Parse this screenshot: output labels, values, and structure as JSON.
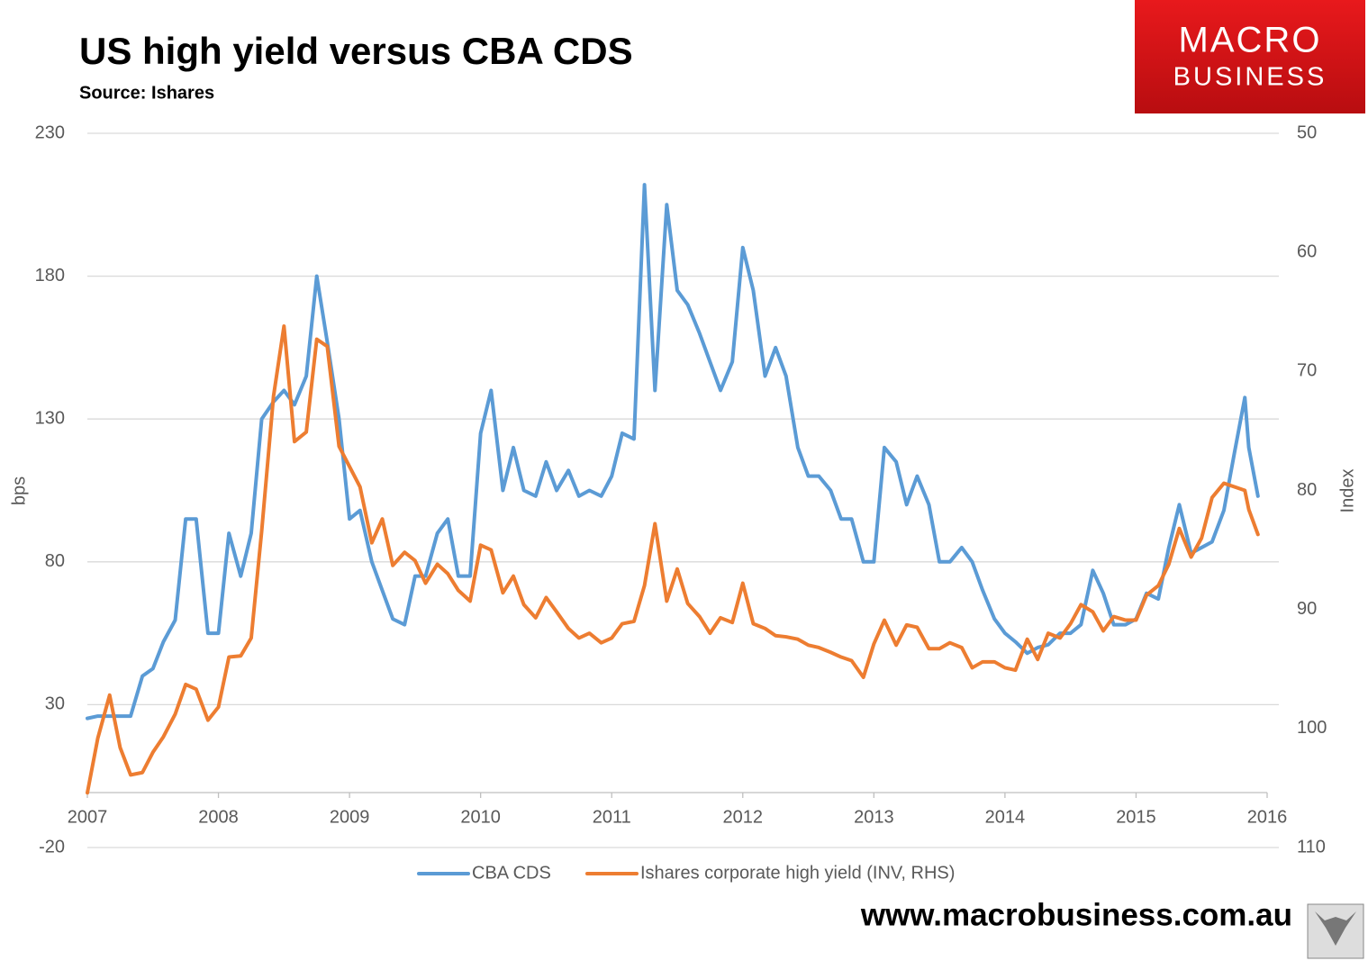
{
  "chart_data": {
    "type": "line",
    "title": "US high yield versus CBA CDS",
    "subtitle": "Source: Ishares",
    "y_label": "bps",
    "y2_label": "Index",
    "x": [
      2007,
      2007.08,
      2007.17,
      2007.25,
      2007.33,
      2007.42,
      2007.5,
      2007.58,
      2007.67,
      2007.75,
      2007.83,
      2007.92,
      2008,
      2008.08,
      2008.17,
      2008.25,
      2008.33,
      2008.42,
      2008.5,
      2008.58,
      2008.67,
      2008.75,
      2008.83,
      2008.92,
      2009,
      2009.08,
      2009.17,
      2009.25,
      2009.33,
      2009.42,
      2009.5,
      2009.58,
      2009.67,
      2009.75,
      2009.83,
      2009.92,
      2010,
      2010.08,
      2010.17,
      2010.25,
      2010.33,
      2010.42,
      2010.5,
      2010.58,
      2010.67,
      2010.75,
      2010.83,
      2010.92,
      2011,
      2011.08,
      2011.17,
      2011.25,
      2011.33,
      2011.42,
      2011.5,
      2011.58,
      2011.67,
      2011.75,
      2011.83,
      2011.92,
      2012,
      2012.08,
      2012.17,
      2012.25,
      2012.33,
      2012.42,
      2012.5,
      2012.58,
      2012.67,
      2012.75,
      2012.83,
      2012.92,
      2013,
      2013.08,
      2013.17,
      2013.25,
      2013.33,
      2013.42,
      2013.5,
      2013.58,
      2013.67,
      2013.75,
      2013.83,
      2013.92,
      2014,
      2014.08,
      2014.17,
      2014.25,
      2014.33,
      2014.42,
      2014.5,
      2014.58,
      2014.67,
      2014.75,
      2014.83,
      2014.92,
      2015,
      2015.08,
      2015.17,
      2015.25,
      2015.33,
      2015.42,
      2015.5,
      2015.58,
      2015.67,
      2015.75,
      2015.83,
      2015.86,
      2015.93
    ],
    "series": [
      {
        "name": "CBA CDS",
        "color": "#5b9bd5",
        "values": [
          25.2,
          26,
          26,
          26,
          26,
          40,
          42.6,
          52,
          59.6,
          95,
          95,
          55,
          55,
          90,
          75,
          90,
          130,
          136,
          140,
          135,
          145,
          180,
          157,
          130,
          95,
          98,
          80,
          70,
          60,
          58,
          75,
          75,
          90,
          95,
          75,
          75,
          125,
          140,
          105,
          120,
          105,
          103,
          115,
          105,
          112,
          103,
          105,
          103,
          110,
          125,
          123,
          212,
          140,
          205,
          175,
          170,
          160,
          150,
          140,
          150,
          190,
          175,
          145,
          155,
          145,
          120,
          110,
          110,
          105,
          95,
          95,
          80,
          80,
          120,
          115,
          100,
          110,
          100,
          80,
          80,
          85,
          80,
          70,
          60,
          55,
          52,
          48,
          50,
          51,
          55,
          55,
          58,
          77,
          69,
          58,
          58,
          60,
          69,
          67,
          85,
          100,
          83,
          85,
          87,
          98,
          118,
          137.5,
          120,
          103
        ]
      },
      {
        "name": "Ishares corporate high yield (INV, RHS)",
        "color": "#ed7d31",
        "axis": "y2",
        "values": [
          105.4,
          100.8,
          97.2,
          101.6,
          103.9,
          103.7,
          102,
          100.7,
          98.8,
          96.3,
          96.7,
          99.3,
          98.2,
          94,
          93.9,
          92.4,
          83.4,
          72.1,
          66.2,
          75.9,
          75.1,
          67.3,
          67.9,
          76.3,
          78,
          79.7,
          84.4,
          82.4,
          86.3,
          85.2,
          85.9,
          87.8,
          86.2,
          87,
          88.4,
          89.3,
          84.6,
          85,
          88.6,
          87.2,
          89.6,
          90.7,
          89,
          90.2,
          91.6,
          92.4,
          92,
          92.8,
          92.4,
          91.2,
          91,
          88,
          82.8,
          89.3,
          86.6,
          89.5,
          90.6,
          92,
          90.7,
          91.1,
          87.8,
          91.2,
          91.6,
          92.2,
          92.3,
          92.5,
          93,
          93.2,
          93.6,
          94,
          94.3,
          95.7,
          92.9,
          90.9,
          93,
          91.3,
          91.5,
          93.3,
          93.3,
          92.8,
          93.2,
          94.9,
          94.4,
          94.4,
          94.9,
          95.1,
          92.5,
          94.2,
          92,
          92.4,
          91.2,
          89.6,
          90.2,
          91.8,
          90.6,
          90.9,
          90.9,
          88.8,
          88,
          86.2,
          83.2,
          85.6,
          84,
          80.6,
          79.4,
          79.7,
          80,
          81.6,
          83.7
        ]
      }
    ],
    "xlim": [
      2007,
      2016
    ],
    "xticks": [
      2007,
      2008,
      2009,
      2010,
      2011,
      2012,
      2013,
      2014,
      2015,
      2016
    ],
    "ylim": [
      -20,
      230
    ],
    "yticks": [
      -20,
      30,
      80,
      130,
      180,
      230
    ],
    "y2lim": [
      50,
      110
    ],
    "y2ticks": [
      50,
      60,
      70,
      80,
      90,
      100,
      110
    ],
    "y2_reversed": true,
    "grid": true,
    "legend": "bottom"
  },
  "branding": {
    "logo_line1": "MACRO",
    "logo_line2": "BUSINESS",
    "website": "www.macrobusiness.com.au"
  }
}
